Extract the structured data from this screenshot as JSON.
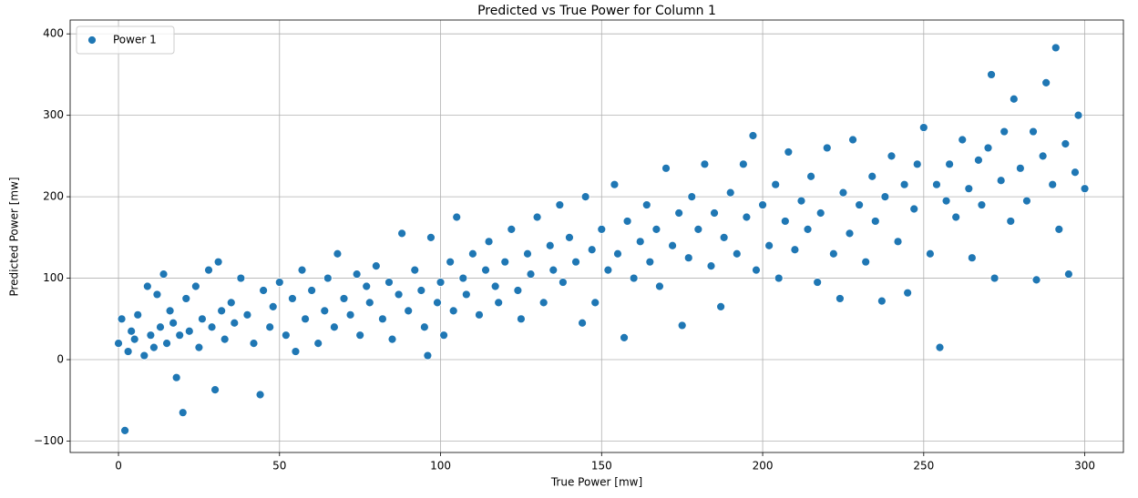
{
  "chart_data": {
    "type": "scatter",
    "title": "Predicted vs True Power for Column 1",
    "xlabel": "True Power [mw]",
    "ylabel": "Predicted Power [mw]",
    "x": [
      0,
      1,
      2,
      3,
      4,
      5,
      6,
      8,
      9,
      10,
      11,
      12,
      13,
      14,
      15,
      16,
      17,
      18,
      19,
      20,
      21,
      22,
      24,
      25,
      26,
      28,
      29,
      30,
      31,
      32,
      33,
      35,
      36,
      38,
      40,
      42,
      44,
      45,
      47,
      48,
      50,
      52,
      54,
      55,
      57,
      58,
      60,
      62,
      64,
      65,
      67,
      68,
      70,
      72,
      74,
      75,
      77,
      78,
      80,
      82,
      84,
      85,
      87,
      88,
      90,
      92,
      94,
      95,
      96,
      97,
      99,
      100,
      101,
      103,
      104,
      105,
      107,
      108,
      110,
      112,
      114,
      115,
      117,
      118,
      120,
      122,
      124,
      125,
      127,
      128,
      130,
      132,
      134,
      135,
      137,
      138,
      140,
      142,
      144,
      145,
      147,
      148,
      150,
      152,
      154,
      155,
      157,
      158,
      160,
      162,
      164,
      165,
      167,
      168,
      170,
      172,
      174,
      175,
      177,
      178,
      180,
      182,
      184,
      185,
      187,
      188,
      190,
      192,
      194,
      195,
      197,
      198,
      200,
      202,
      204,
      205,
      207,
      208,
      210,
      212,
      214,
      215,
      217,
      218,
      220,
      222,
      224,
      225,
      227,
      228,
      230,
      232,
      234,
      235,
      237,
      238,
      240,
      242,
      244,
      245,
      247,
      248,
      250,
      252,
      254,
      255,
      257,
      258,
      260,
      262,
      264,
      265,
      267,
      268,
      270,
      271,
      272,
      274,
      275,
      277,
      278,
      280,
      282,
      284,
      285,
      287,
      288,
      290,
      291,
      292,
      294,
      295,
      297,
      298,
      300
    ],
    "series": [
      {
        "name": "Power 1",
        "color": "#1f77b4",
        "values": [
          20,
          50,
          -87,
          10,
          35,
          25,
          55,
          5,
          90,
          30,
          15,
          80,
          40,
          105,
          20,
          60,
          45,
          -22,
          30,
          -65,
          75,
          35,
          90,
          15,
          50,
          110,
          40,
          -37,
          120,
          60,
          25,
          70,
          45,
          100,
          55,
          20,
          -43,
          85,
          40,
          65,
          95,
          30,
          75,
          10,
          110,
          50,
          85,
          20,
          60,
          100,
          40,
          130,
          75,
          55,
          105,
          30,
          90,
          70,
          115,
          50,
          95,
          25,
          80,
          155,
          60,
          110,
          85,
          40,
          5,
          150,
          70,
          95,
          30,
          120,
          60,
          175,
          100,
          80,
          130,
          55,
          110,
          145,
          90,
          70,
          120,
          160,
          85,
          50,
          130,
          105,
          175,
          70,
          140,
          110,
          190,
          95,
          150,
          120,
          45,
          200,
          135,
          70,
          160,
          110,
          215,
          130,
          27,
          170,
          100,
          145,
          190,
          120,
          160,
          90,
          235,
          140,
          180,
          42,
          125,
          200,
          160,
          240,
          115,
          180,
          65,
          150,
          205,
          130,
          240,
          175,
          275,
          110,
          190,
          140,
          215,
          100,
          170,
          255,
          135,
          195,
          160,
          225,
          95,
          180,
          260,
          130,
          75,
          205,
          155,
          270,
          190,
          120,
          225,
          170,
          72,
          200,
          250,
          145,
          215,
          82,
          185,
          240,
          285,
          130,
          215,
          15,
          195,
          240,
          175,
          270,
          210,
          125,
          245,
          190,
          260,
          350,
          100,
          220,
          280,
          170,
          320,
          235,
          195,
          280,
          98,
          250,
          340,
          215,
          383,
          160,
          265,
          105,
          230,
          300,
          210
        ]
      }
    ],
    "xlim": [
      -15,
      312
    ],
    "ylim": [
      -114,
      417
    ],
    "xticks": [
      0,
      50,
      100,
      150,
      200,
      250,
      300
    ],
    "yticks": [
      {
        "value": -100,
        "label": "−100"
      },
      0,
      100,
      200,
      300,
      400
    ],
    "grid": true,
    "legend": "upper left"
  }
}
